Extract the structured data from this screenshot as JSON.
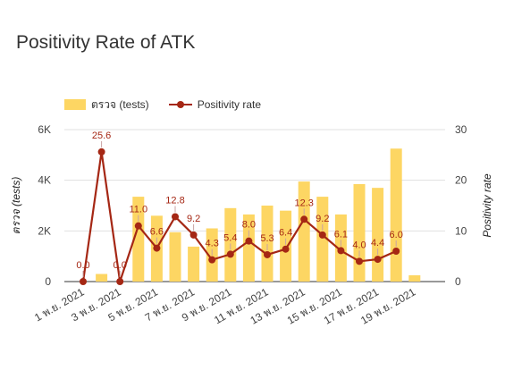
{
  "chart_data": {
    "type": "bar+line",
    "title": "Positivity Rate of ATK",
    "colors": {
      "bars": "#fdd663",
      "line": "#a52714",
      "grid": "#e0e0e0",
      "text": "#444444"
    },
    "legend": {
      "position": "top-left"
    },
    "grid": true,
    "x_tick_labels": [
      "1 พ.ย. 2021",
      "3 พ.ย. 2021",
      "5 พ.ย. 2021",
      "7 พ.ย. 2021",
      "9 พ.ย. 2021",
      "11 พ.ย. 2021",
      "13 พ.ย. 2021",
      "15 พ.ย. 2021",
      "17 พ.ย. 2021",
      "19 พ.ย. 2021"
    ],
    "x_tick_every": 2,
    "left_axis": {
      "label": "ตรวจ (tests)",
      "ticks": [
        "0",
        "2K",
        "4K",
        "6K"
      ],
      "range": [
        0,
        6000
      ]
    },
    "right_axis": {
      "label": "Positivity rate",
      "ticks": [
        "0",
        "10",
        "20",
        "30"
      ],
      "range": [
        0,
        30
      ]
    },
    "series": [
      {
        "name": "ตรวจ (tests)",
        "kind": "bar",
        "values": [
          0,
          300,
          0,
          3350,
          2600,
          1950,
          1380,
          2100,
          2900,
          2650,
          3000,
          2800,
          3950,
          3350,
          2650,
          3850,
          3700,
          5250,
          250
        ]
      },
      {
        "name": "Positivity rate",
        "kind": "line",
        "values": [
          0.0,
          25.6,
          0.0,
          11.0,
          6.6,
          12.8,
          9.2,
          4.3,
          5.4,
          8.0,
          5.3,
          6.4,
          12.3,
          9.2,
          6.1,
          4.0,
          4.4,
          6.0,
          null
        ],
        "labels": [
          "0.0",
          "25.6",
          "0.0",
          "11.0",
          "6.6",
          "12.8",
          "9.2",
          "4.3",
          "5.4",
          "8.0",
          "5.3",
          "6.4",
          "12.3",
          "9.2",
          "6.1",
          "4.0",
          "4.4",
          "6.0",
          null
        ]
      }
    ]
  }
}
